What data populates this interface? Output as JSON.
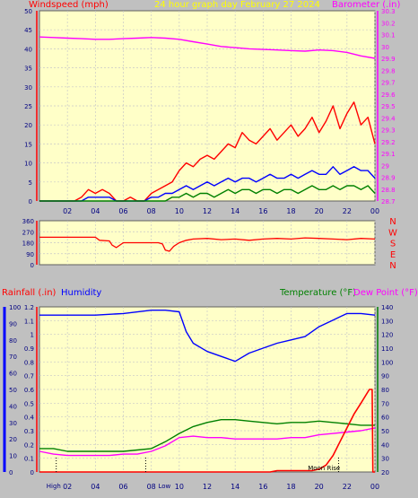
{
  "header": {
    "left": "Windspeed (mph)",
    "center": "24 hour graph day   February 27 2024",
    "right": "Barometer (.in)"
  },
  "dir_labels": [
    "N",
    "W",
    "S",
    "E",
    "N"
  ],
  "bottom_header": {
    "rainfall": "Rainfall (.in)",
    "humidity": "Humidity",
    "temperature": "Temperature (°F)",
    "dewpoint": "Dew Point (°F)"
  },
  "annotations": {
    "high_time": "High",
    "low_time": "Low",
    "moon_rise": "Moon Rise"
  },
  "colors": {
    "background": "#c0c0c0",
    "plot": "#ffffc8",
    "grid": "#c8c8c8",
    "wind_gust": "#ff0000",
    "wind_avg": "#0000ff",
    "wind_low": "#008000",
    "barometer": "#ff00ff",
    "direction": "#ff0000",
    "humidity": "#0000ff",
    "temperature": "#008000",
    "dewpoint": "#ff00ff",
    "rain": "#ff0000"
  },
  "chart_data": [
    {
      "type": "line",
      "title": "24 hour graph day   February 27 2024",
      "x_ticks": [
        "02",
        "04",
        "06",
        "08",
        "10",
        "12",
        "14",
        "16",
        "18",
        "20",
        "22",
        "00"
      ],
      "xlim": [
        0,
        24
      ],
      "left_axis": {
        "label": "Windspeed (mph)",
        "ylim": [
          0,
          50
        ],
        "ticks": [
          "0",
          "5",
          "10",
          "15",
          "20",
          "25",
          "30",
          "35",
          "40",
          "45",
          "50"
        ]
      },
      "right_axis": {
        "label": "Barometer (.in)",
        "ylim": [
          28.7,
          30.3
        ],
        "ticks": [
          "28.7",
          "28.8",
          "28.9",
          "29",
          "29.1",
          "29.2",
          "29.3",
          "29.4",
          "29.5",
          "29.6",
          "29.7",
          "29.8",
          "29.9",
          "30",
          "30.1",
          "30.2",
          "30.3"
        ]
      },
      "series": [
        {
          "key": "gust",
          "axis": "left",
          "x": [
            0,
            2.5,
            3.0,
            3.5,
            4.0,
            4.5,
            5.0,
            5.5,
            6.0,
            6.5,
            7.0,
            7.5,
            8.0,
            8.5,
            9.0,
            9.5,
            10.0,
            10.5,
            11.0,
            11.5,
            12.0,
            12.5,
            13.0,
            13.5,
            14.0,
            14.5,
            15.0,
            15.5,
            16.0,
            16.5,
            17.0,
            17.5,
            18.0,
            18.5,
            19.0,
            19.5,
            20.0,
            20.5,
            21.0,
            21.5,
            22.0,
            22.5,
            23.0,
            23.5,
            24.0
          ],
          "y": [
            0,
            0,
            1,
            3,
            2,
            3,
            2,
            0,
            0,
            1,
            0,
            0,
            2,
            3,
            4,
            5,
            8,
            10,
            9,
            11,
            12,
            11,
            13,
            15,
            14,
            18,
            16,
            15,
            17,
            19,
            16,
            18,
            20,
            17,
            19,
            22,
            18,
            21,
            25,
            19,
            23,
            26,
            20,
            22,
            15
          ]
        },
        {
          "key": "avg",
          "axis": "left",
          "x": [
            0,
            2.5,
            3.0,
            3.5,
            4.0,
            4.5,
            5.0,
            5.5,
            6.0,
            6.5,
            7.0,
            7.5,
            8.0,
            8.5,
            9.0,
            9.5,
            10.0,
            10.5,
            11.0,
            11.5,
            12.0,
            12.5,
            13.0,
            13.5,
            14.0,
            14.5,
            15.0,
            15.5,
            16.0,
            16.5,
            17.0,
            17.5,
            18.0,
            18.5,
            19.0,
            19.5,
            20.0,
            20.5,
            21.0,
            21.5,
            22.0,
            22.5,
            23.0,
            23.5,
            24.0
          ],
          "y": [
            0,
            0,
            0,
            1,
            1,
            1,
            1,
            0,
            0,
            0,
            0,
            0,
            1,
            1,
            2,
            2,
            3,
            4,
            3,
            4,
            5,
            4,
            5,
            6,
            5,
            6,
            6,
            5,
            6,
            7,
            6,
            6,
            7,
            6,
            7,
            8,
            7,
            7,
            9,
            7,
            8,
            9,
            8,
            8,
            6
          ]
        },
        {
          "key": "low",
          "axis": "left",
          "x": [
            0,
            2.5,
            3.0,
            3.5,
            4.0,
            4.5,
            5.0,
            5.5,
            6.0,
            6.5,
            7.0,
            7.5,
            8.0,
            8.5,
            9.0,
            9.5,
            10.0,
            10.5,
            11.0,
            11.5,
            12.0,
            12.5,
            13.0,
            13.5,
            14.0,
            14.5,
            15.0,
            15.5,
            16.0,
            16.5,
            17.0,
            17.5,
            18.0,
            18.5,
            19.0,
            19.5,
            20.0,
            20.5,
            21.0,
            21.5,
            22.0,
            22.5,
            23.0,
            23.5,
            24.0
          ],
          "y": [
            0,
            0,
            0,
            0,
            0,
            0,
            0,
            0,
            0,
            0,
            0,
            0,
            0,
            0,
            0,
            1,
            1,
            2,
            1,
            2,
            2,
            1,
            2,
            3,
            2,
            3,
            3,
            2,
            3,
            3,
            2,
            3,
            3,
            2,
            3,
            4,
            3,
            3,
            4,
            3,
            4,
            4,
            3,
            4,
            2
          ]
        },
        {
          "key": "barometer",
          "axis": "right",
          "x": [
            0,
            1,
            2,
            3,
            4,
            5,
            6,
            7,
            8,
            9,
            10,
            11,
            12,
            13,
            14,
            15,
            16,
            17,
            18,
            19,
            20,
            21,
            22,
            23,
            24
          ],
          "y": [
            30.08,
            30.075,
            30.07,
            30.065,
            30.06,
            30.06,
            30.065,
            30.07,
            30.075,
            30.07,
            30.06,
            30.04,
            30.02,
            30.0,
            29.99,
            29.98,
            29.975,
            29.97,
            29.965,
            29.96,
            29.97,
            29.965,
            29.95,
            29.92,
            29.9
          ]
        }
      ]
    },
    {
      "type": "line",
      "x_ticks": [
        "02",
        "04",
        "06",
        "08",
        "10",
        "12",
        "14",
        "16",
        "18",
        "20",
        "22",
        "00"
      ],
      "xlim": [
        0,
        24
      ],
      "left_axis": {
        "ylim": [
          0,
          360
        ],
        "ticks": [
          "0",
          "90",
          "180",
          "270",
          "360"
        ]
      },
      "series": [
        {
          "key": "direction",
          "axis": "left",
          "x": [
            0,
            4.0,
            4.3,
            5.0,
            5.2,
            5.5,
            6.0,
            6.5,
            7.0,
            8.0,
            8.5,
            8.8,
            9.0,
            9.3,
            9.6,
            10.0,
            10.5,
            11,
            12,
            13,
            14,
            15,
            16,
            17,
            18,
            19,
            20,
            21,
            22,
            23,
            24
          ],
          "y": [
            225,
            225,
            200,
            195,
            160,
            140,
            180,
            180,
            180,
            180,
            180,
            170,
            120,
            110,
            150,
            180,
            200,
            210,
            215,
            205,
            210,
            200,
            210,
            215,
            210,
            220,
            215,
            210,
            205,
            215,
            210
          ]
        }
      ]
    },
    {
      "type": "line",
      "x_ticks": [
        "02",
        "04",
        "06",
        "08",
        "10",
        "12",
        "14",
        "16",
        "18",
        "20",
        "22",
        "00"
      ],
      "xlim": [
        0,
        24
      ],
      "left_axis": {
        "label": "Rainfall (.in)",
        "ylim": [
          0,
          1.2
        ],
        "ticks": [
          "0",
          "0.1",
          "0.2",
          "0.3",
          "0.4",
          "0.5",
          "0.6",
          "0.7",
          "0.8",
          "0.9",
          "1",
          "1.1",
          "1.2"
        ]
      },
      "left_axis_2": {
        "label": "Humidity",
        "ylim": [
          0,
          100
        ],
        "ticks": [
          "0",
          "10",
          "20",
          "30",
          "40",
          "50",
          "60",
          "70",
          "80",
          "90",
          "100"
        ]
      },
      "right_axis": {
        "label": "Temperature (°F)",
        "ylim": [
          20,
          140
        ],
        "ticks": [
          "20",
          "30",
          "40",
          "50",
          "60",
          "70",
          "80",
          "90",
          "100",
          "110",
          "120",
          "130",
          "140"
        ]
      },
      "series": [
        {
          "key": "humidity",
          "axis": "humidity",
          "x": [
            0,
            2,
            4,
            6,
            8,
            9,
            10,
            10.5,
            11,
            12,
            13,
            14,
            15,
            16,
            17,
            18,
            19,
            20,
            21,
            22,
            23,
            24
          ],
          "y": [
            95,
            95,
            95,
            96,
            98,
            98,
            97,
            85,
            78,
            73,
            70,
            67,
            72,
            75,
            78,
            80,
            82,
            88,
            92,
            96,
            96,
            95
          ]
        },
        {
          "key": "temperature",
          "axis": "right",
          "x": [
            0,
            1,
            2,
            3,
            4,
            5,
            6,
            7,
            8,
            9,
            10,
            11,
            12,
            13,
            14,
            15,
            16,
            17,
            18,
            19,
            20,
            21,
            22,
            23,
            24
          ],
          "y": [
            37,
            37,
            35,
            35,
            35,
            35,
            35,
            36,
            37,
            42,
            48,
            53,
            56,
            58,
            58,
            57,
            56,
            55,
            56,
            56,
            57,
            56,
            55,
            54,
            54
          ]
        },
        {
          "key": "dewpoint",
          "axis": "right",
          "x": [
            0,
            1,
            2,
            3,
            4,
            5,
            6,
            7,
            8,
            9,
            10,
            11,
            12,
            13,
            14,
            15,
            16,
            17,
            18,
            19,
            20,
            21,
            22,
            23,
            24
          ],
          "y": [
            35,
            33,
            32,
            32,
            32,
            32,
            33,
            33,
            35,
            39,
            45,
            46,
            45,
            45,
            44,
            44,
            44,
            44,
            45,
            45,
            47,
            48,
            49,
            50,
            52
          ]
        },
        {
          "key": "rain",
          "axis": "left",
          "x": [
            0,
            16.5,
            17,
            18,
            19,
            19.5,
            20,
            20.5,
            21,
            21.5,
            22,
            22.5,
            23,
            23.6,
            23.8,
            23.85,
            24
          ],
          "y": [
            0,
            0,
            0.01,
            0.01,
            0.01,
            0.01,
            0.02,
            0.05,
            0.12,
            0.22,
            0.32,
            0.42,
            0.5,
            0.6,
            0.6,
            0,
            0
          ]
        }
      ]
    }
  ]
}
